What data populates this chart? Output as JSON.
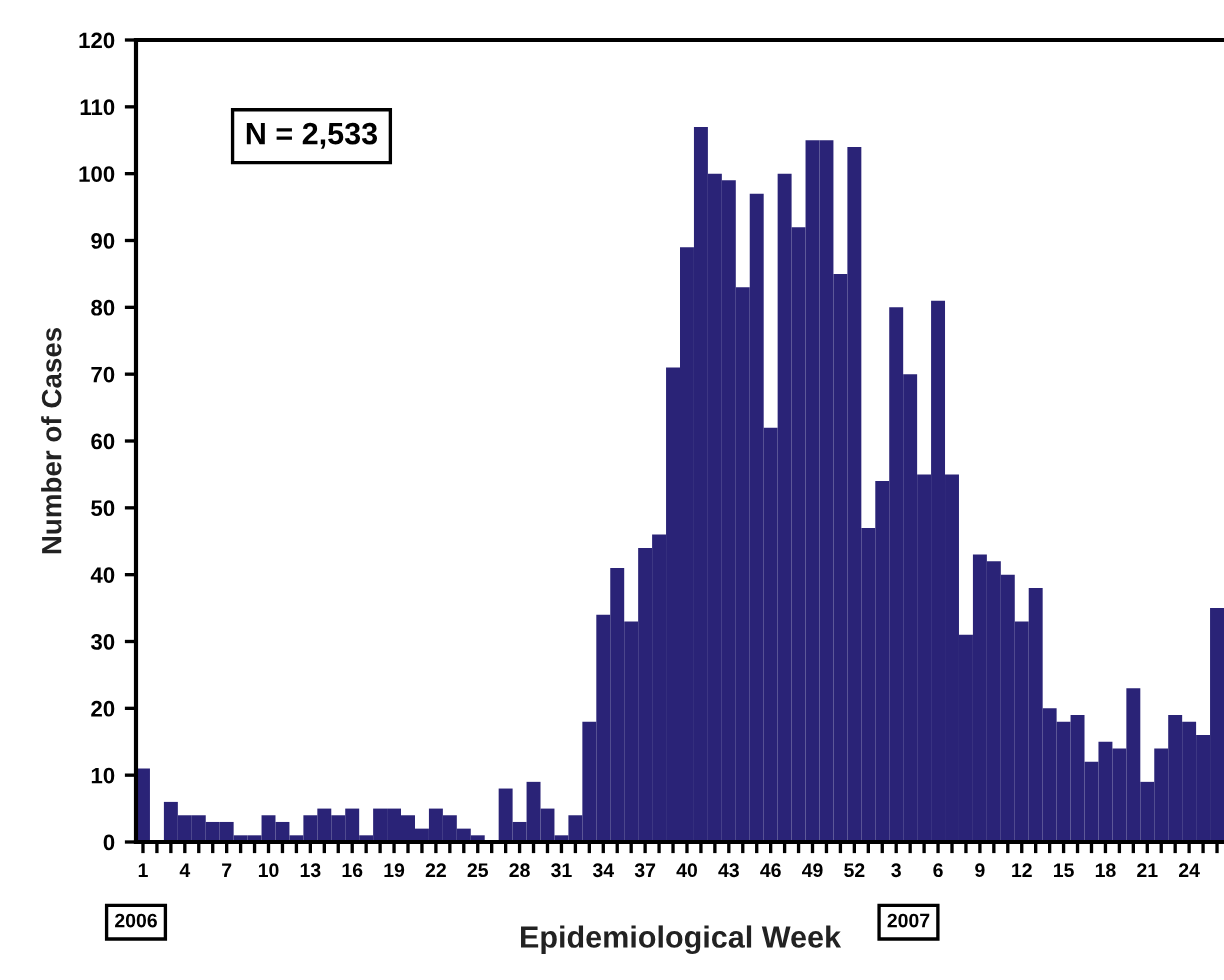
{
  "chart_data": {
    "type": "bar",
    "xlabel": "Epidemiological Week",
    "ylabel": "Number of Cases",
    "categories": [
      "1",
      null,
      null,
      "4",
      null,
      null,
      "7",
      null,
      null,
      "10",
      null,
      null,
      "13",
      null,
      null,
      "16",
      null,
      null,
      "19",
      null,
      null,
      "22",
      null,
      null,
      "25",
      null,
      null,
      "28",
      null,
      null,
      "31",
      null,
      null,
      "34",
      null,
      null,
      "37",
      null,
      null,
      "40",
      null,
      null,
      "43",
      null,
      null,
      "46",
      null,
      null,
      "49",
      null,
      null,
      "52",
      null,
      null,
      "3",
      null,
      null,
      "6",
      null,
      null,
      "9",
      null,
      null,
      "12",
      null,
      null,
      "15",
      null,
      null,
      "18",
      null,
      null,
      "21",
      null,
      null,
      "24",
      null,
      null
    ],
    "values": [
      11,
      0,
      6,
      4,
      4,
      3,
      3,
      1,
      1,
      4,
      3,
      1,
      4,
      5,
      4,
      5,
      1,
      5,
      5,
      4,
      2,
      5,
      4,
      2,
      1,
      0,
      8,
      3,
      9,
      5,
      1,
      4,
      18,
      34,
      41,
      33,
      44,
      46,
      71,
      89,
      107,
      100,
      99,
      83,
      97,
      62,
      100,
      92,
      105,
      105,
      85,
      104,
      47,
      54,
      80,
      70,
      55,
      81,
      55,
      31,
      43,
      42,
      40,
      33,
      38,
      20,
      18,
      19,
      12,
      15,
      14,
      23,
      9,
      14,
      19,
      18,
      16,
      35
    ],
    "color": "#2a2377",
    "ylim": [
      0,
      120
    ],
    "yticks": [
      0,
      10,
      20,
      30,
      40,
      50,
      60,
      70,
      80,
      90,
      100,
      110,
      120
    ],
    "grid": false,
    "annotations": [
      "N = 2,533",
      "2006",
      "2007"
    ]
  }
}
